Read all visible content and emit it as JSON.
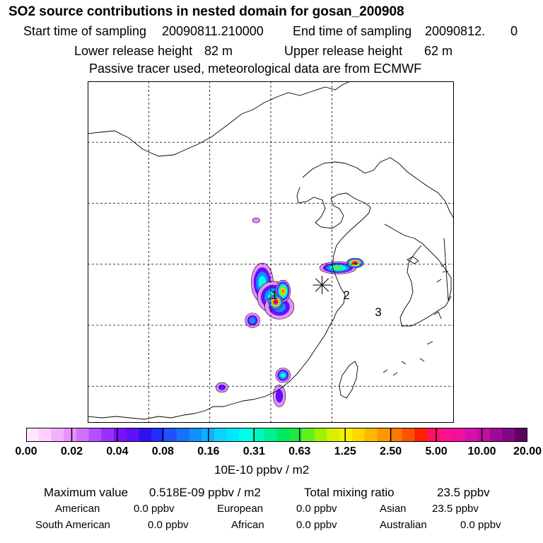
{
  "header": {
    "title": "SO2 source contributions in nested domain for gosan_200908",
    "start_label": "Start time of sampling",
    "start_value": "20090811.210000",
    "end_label": "End time of sampling",
    "end_value": "20090812.",
    "end_suffix": "0",
    "lower_label": "Lower release height",
    "lower_value": "82 m",
    "upper_label": "Upper release height",
    "upper_value": "62 m",
    "note": "Passive tracer used, meteorological data are from ECMWF"
  },
  "chart_data": {
    "type": "heatmap",
    "title": "SO2 source contributions in nested domain for gosan_200908",
    "colorbar": {
      "ticks": [
        "0.00",
        "0.02",
        "0.04",
        "0.08",
        "0.16",
        "0.31",
        "0.63",
        "1.25",
        "2.50",
        "5.00",
        "10.00",
        "20.00"
      ],
      "unit": "10E-10 ppbv / m2",
      "colors": [
        "#ffe8ff",
        "#ffd0ff",
        "#f4b0ff",
        "#e890ff",
        "#d070ff",
        "#b050ff",
        "#9a30ff",
        "#7a10ff",
        "#6010f8",
        "#3010f0",
        "#2030ff",
        "#2050ff",
        "#1870ff",
        "#1090ff",
        "#10b0ff",
        "#10d0ff",
        "#00e8ff",
        "#00ffe8",
        "#00f8c0",
        "#00f090",
        "#00e860",
        "#20e840",
        "#60f020",
        "#a0f000",
        "#d8f000",
        "#f8f000",
        "#ffd800",
        "#ffb800",
        "#ff9800",
        "#ff7800",
        "#ff5000",
        "#ff2000",
        "#ff1060",
        "#ff1090",
        "#f010a0",
        "#d810a8",
        "#c010a0",
        "#a00898",
        "#800880",
        "#600060"
      ]
    },
    "markers": [
      {
        "label": "1",
        "lon": 122.3,
        "lat": 32.4
      },
      {
        "label": "2",
        "lon": 128.2,
        "lat": 32.4
      },
      {
        "label": "3",
        "lon": 130.8,
        "lat": 31.0
      }
    ],
    "receptor": {
      "name": "gosan",
      "lon": 126.2,
      "lat": 33.3
    },
    "plumes": [
      {
        "lon": 121.3,
        "lat": 33.5,
        "rx": 0.9,
        "ry": 1.6,
        "level": 3
      },
      {
        "lon": 122.2,
        "lat": 32.3,
        "rx": 1.3,
        "ry": 1.3,
        "level": 3
      },
      {
        "lon": 122.7,
        "lat": 31.5,
        "rx": 1.2,
        "ry": 1.0,
        "level": 2
      },
      {
        "lon": 123.0,
        "lat": 32.8,
        "rx": 0.6,
        "ry": 0.9,
        "level": 6
      },
      {
        "lon": 122.4,
        "lat": 31.9,
        "rx": 0.6,
        "ry": 0.6,
        "level": 9
      },
      {
        "lon": 120.5,
        "lat": 30.4,
        "rx": 0.6,
        "ry": 0.6,
        "level": 2
      },
      {
        "lon": 127.5,
        "lat": 34.7,
        "rx": 1.5,
        "ry": 0.5,
        "level": 4
      },
      {
        "lon": 128.9,
        "lat": 35.1,
        "rx": 0.7,
        "ry": 0.4,
        "level": 9
      },
      {
        "lon": 123.0,
        "lat": 25.9,
        "rx": 0.6,
        "ry": 0.6,
        "level": 3
      },
      {
        "lon": 122.7,
        "lat": 24.2,
        "rx": 0.5,
        "ry": 0.9,
        "level": 1
      },
      {
        "lon": 118.0,
        "lat": 24.9,
        "rx": 0.5,
        "ry": 0.4,
        "level": 1
      },
      {
        "lon": 120.8,
        "lat": 38.6,
        "rx": 0.3,
        "ry": 0.2,
        "level": 0
      }
    ],
    "grid": {
      "lon": [
        112,
        117,
        122,
        127
      ],
      "lat": [
        25,
        30,
        35,
        40,
        45
      ]
    },
    "extent": {
      "lon": [
        107,
        137
      ],
      "lat": [
        22,
        50
      ]
    }
  },
  "footer": {
    "max_label": "Maximum value",
    "max_value": "0.518E-09 ppbv / m2",
    "total_label": "Total mixing ratio",
    "total_value": "23.5 ppbv",
    "regions": [
      {
        "name": "American",
        "value": "0.0 ppbv"
      },
      {
        "name": "European",
        "value": "0.0 ppbv"
      },
      {
        "name": "Asian",
        "value": "23.5 ppbv"
      },
      {
        "name": "South American",
        "value": "0.0 ppbv"
      },
      {
        "name": "African",
        "value": "0.0 ppbv"
      },
      {
        "name": "Australian",
        "value": "0.0 ppbv"
      }
    ]
  }
}
